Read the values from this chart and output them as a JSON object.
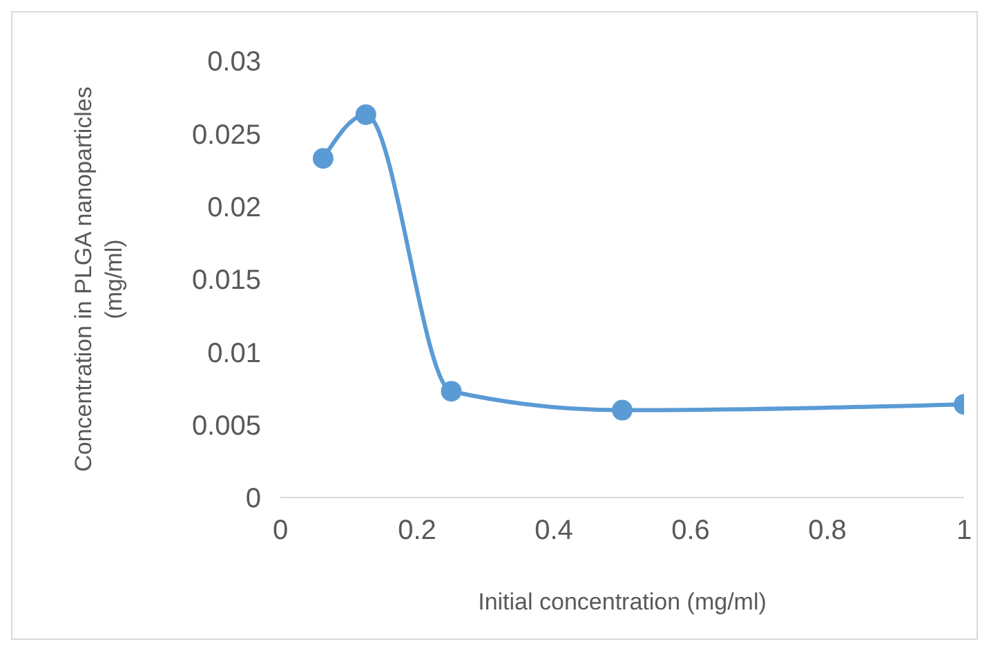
{
  "chart_data": {
    "type": "line",
    "xlabel": "Initial concentration (mg/ml)",
    "ylabel": "Concentration in PLGA nanoparticles (mg/ml)",
    "x": [
      0.0625,
      0.125,
      0.25,
      0.5,
      1
    ],
    "series": [
      {
        "color": "#5b9bd5",
        "values": [
          0.0233,
          0.0263,
          0.0073,
          0.006,
          0.0064
        ]
      }
    ],
    "xlim": [
      0,
      1
    ],
    "xticks": [
      0,
      0.2,
      0.4,
      0.6,
      0.8,
      1
    ],
    "ylim": [
      0,
      0.03
    ],
    "yticks": [
      0,
      0.005,
      0.01,
      0.015,
      0.02,
      0.025,
      0.03
    ],
    "grid": false,
    "legend": false,
    "marker": "circle",
    "line_style": "solid"
  }
}
